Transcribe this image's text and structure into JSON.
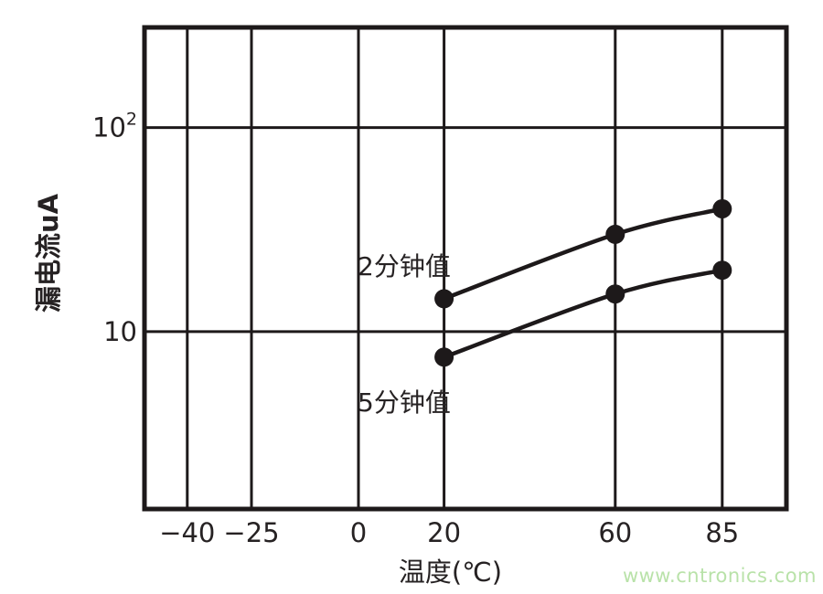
{
  "page": {
    "background": "#ffffff"
  },
  "colors": {
    "line": "#1d191a",
    "text": "#262223",
    "watermark": "#b9e2a9"
  },
  "watermark": {
    "text": "www.cntronics.com"
  },
  "chart_data": {
    "type": "line",
    "title": "",
    "xlabel": "温度(℃)",
    "ylabel": "漏电流uA",
    "x_scale": "linear",
    "y_scale": "log",
    "xlim": [
      -50,
      100
    ],
    "ylim": [
      1.35,
      310
    ],
    "grid": true,
    "legend_position": "inline-annotations",
    "x_ticks": [
      {
        "value": -40,
        "label": "−40"
      },
      {
        "value": -25,
        "label": "−25"
      },
      {
        "value": 0,
        "label": "0"
      },
      {
        "value": 20,
        "label": "20"
      },
      {
        "value": 60,
        "label": "60"
      },
      {
        "value": 85,
        "label": "85"
      }
    ],
    "y_ticks": [
      {
        "value": 10,
        "base": "10",
        "exponent": ""
      },
      {
        "value": 100,
        "base": "10",
        "exponent": "2"
      }
    ],
    "series": [
      {
        "name": "2分钟值",
        "x": [
          20,
          60,
          85
        ],
        "values": [
          14.5,
          30,
          40
        ]
      },
      {
        "name": "5分钟值",
        "x": [
          20,
          60,
          85
        ],
        "values": [
          7.5,
          15.3,
          20
        ]
      }
    ]
  }
}
